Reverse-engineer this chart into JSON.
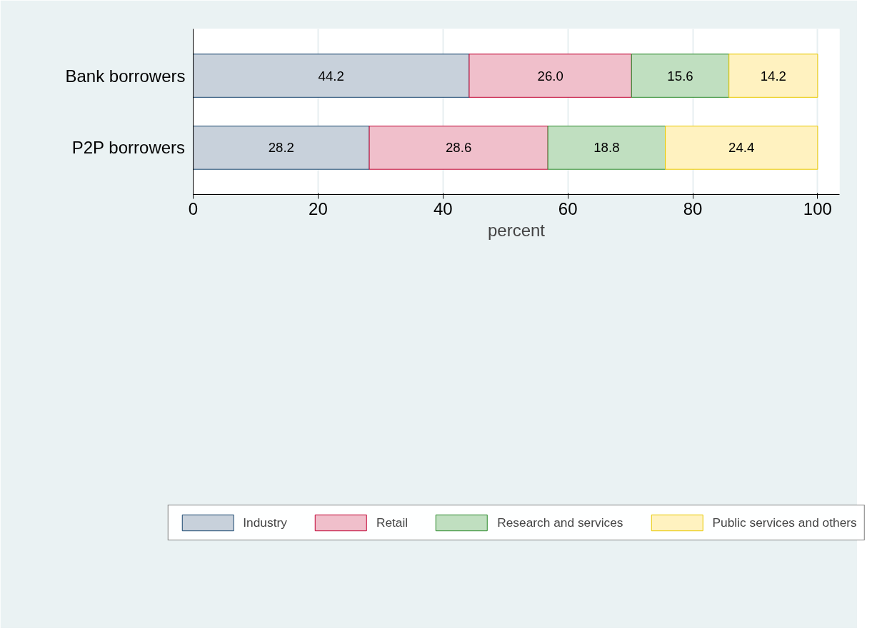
{
  "chart_data": {
    "type": "bar",
    "orientation": "horizontal",
    "stacked": true,
    "categories": [
      "Bank borrowers",
      "P2P borrowers"
    ],
    "series": [
      {
        "name": "Industry",
        "color": "#c8d1db",
        "values": [
          44.2,
          28.2
        ]
      },
      {
        "name": "Retail",
        "color": "#f0bfcb",
        "values": [
          26.0,
          28.6
        ]
      },
      {
        "name": "Research and services",
        "color": "#c0dfc0",
        "values": [
          15.6,
          18.8
        ]
      },
      {
        "name": "Public services and others",
        "color": "#fff2c0",
        "values": [
          14.2,
          24.4
        ]
      }
    ],
    "value_labels": [
      [
        "44.2",
        "28.2"
      ],
      [
        "26.0",
        "28.6"
      ],
      [
        "15.6",
        "18.8"
      ],
      [
        "14.2",
        "24.4"
      ]
    ],
    "xlabel": "percent",
    "xlim": [
      0,
      103.5
    ],
    "xticks": [
      0,
      20,
      40,
      60,
      80,
      100
    ],
    "grid": "x",
    "legend": "bottom"
  }
}
